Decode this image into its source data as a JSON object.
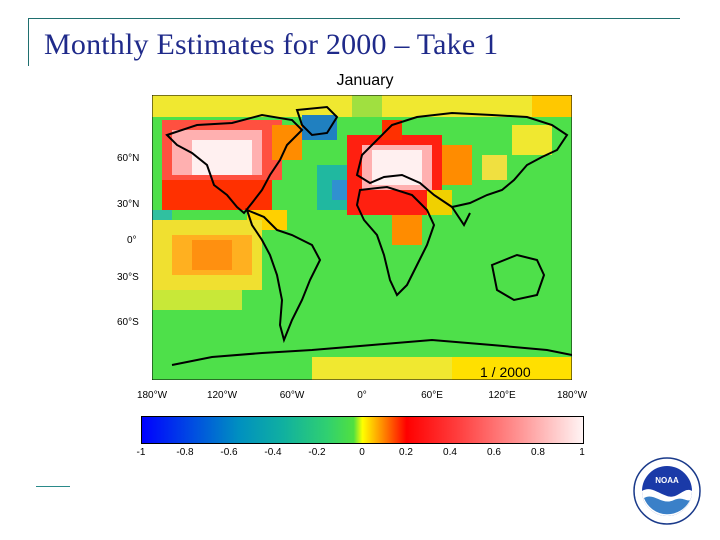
{
  "slide": {
    "title": "Monthly Estimates for 2000 – Take 1"
  },
  "map": {
    "title": "January",
    "date_label": "1 / 2000",
    "lat_labels": [
      "60°N",
      "30°N",
      "0°",
      "30°S",
      "60°S"
    ],
    "lon_labels": [
      "180°W",
      "120°W",
      "60°W",
      "0°",
      "60°E",
      "120°E",
      "180°W"
    ],
    "colors": {
      "background_field": "#46e046",
      "cold": "#0000ff",
      "neutral": "#ffff00",
      "warm": "#ff0000",
      "hot": "#fff0f0"
    }
  },
  "colorbar": {
    "tick_labels": [
      "-1",
      "-0.8",
      "-0.6",
      "-0.4",
      "-0.2",
      "0",
      "0.2",
      "0.4",
      "0.6",
      "0.8",
      "1"
    ],
    "range": [
      -1,
      1
    ]
  },
  "logo": {
    "name": "NOAA",
    "text": "NOAA",
    "ring_text": "NATIONAL OCEANIC AND ATMOSPHERIC ADMINISTRATION · U.S. DEPARTMENT OF COMMERCE"
  }
}
